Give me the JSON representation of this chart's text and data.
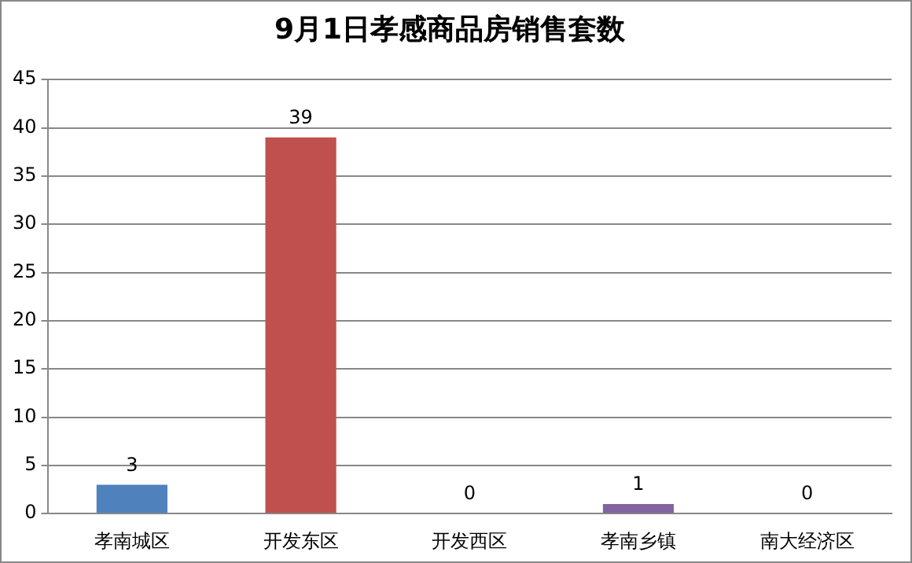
{
  "chart_data": {
    "type": "bar",
    "title": "9月1日孝感商品房销售套数",
    "categories": [
      "孝南城区",
      "开发东区",
      "开发西区",
      "孝南乡镇",
      "南大经济区"
    ],
    "values": [
      3,
      39,
      0,
      1,
      0
    ],
    "colors": [
      "#4f81bd",
      "#c0504d",
      "#9bbb59",
      "#8064a2",
      "#4bacc6"
    ],
    "ylim": [
      0,
      45
    ],
    "yticks": [
      0,
      5,
      10,
      15,
      20,
      25,
      30,
      35,
      40,
      45
    ],
    "grid": "y",
    "data_labels": true,
    "legend": false
  }
}
